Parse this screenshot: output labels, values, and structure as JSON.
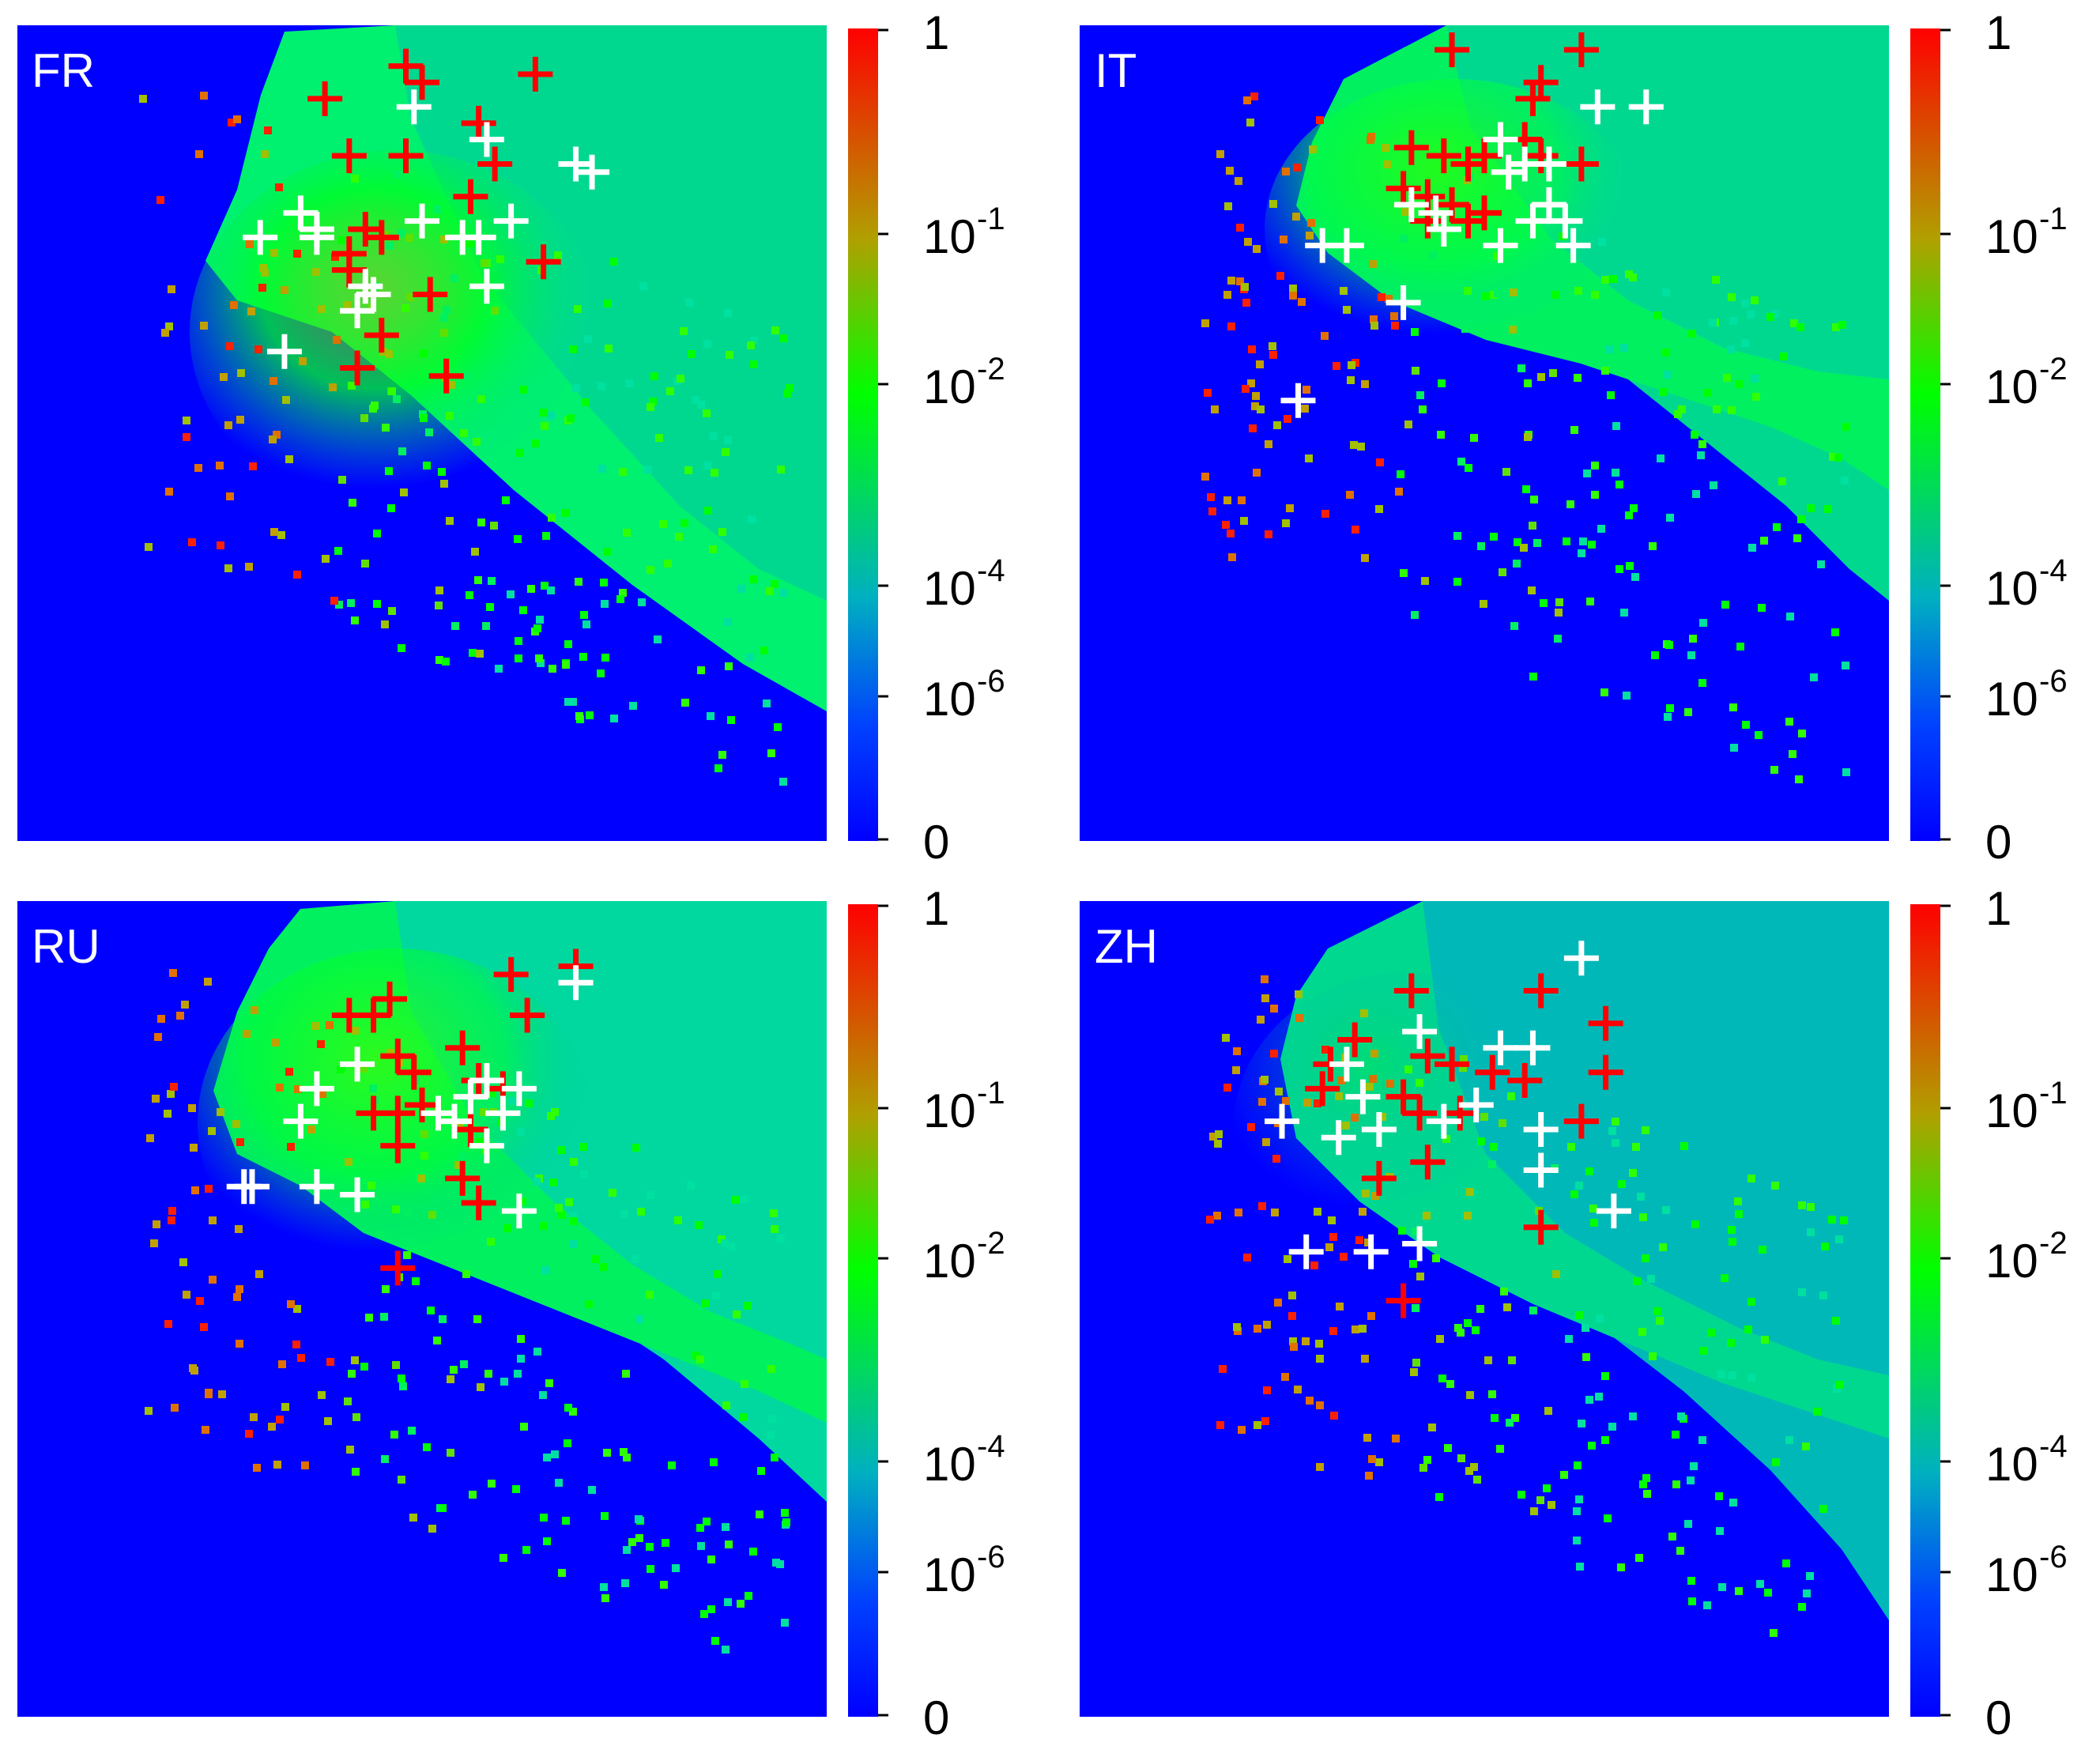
{
  "chart_data": [
    {
      "type": "heatmap",
      "label": "FR",
      "colorbar": {
        "scale": "log",
        "tick_labels": [
          {
            "base": "1",
            "exp": ""
          },
          {
            "base": "10",
            "exp": "-1"
          },
          {
            "base": "10",
            "exp": "-2"
          },
          {
            "base": "10",
            "exp": "-4"
          },
          {
            "base": "10",
            "exp": "-6"
          },
          {
            "base": "0",
            "exp": ""
          }
        ]
      },
      "red_markers": [
        [
          0.48,
          0.95
        ],
        [
          0.5,
          0.93
        ],
        [
          0.64,
          0.94
        ],
        [
          0.38,
          0.91
        ],
        [
          0.57,
          0.88
        ],
        [
          0.41,
          0.84
        ],
        [
          0.48,
          0.84
        ],
        [
          0.59,
          0.83
        ],
        [
          0.56,
          0.79
        ],
        [
          0.43,
          0.75
        ],
        [
          0.45,
          0.74
        ],
        [
          0.41,
          0.72
        ],
        [
          0.65,
          0.71
        ],
        [
          0.41,
          0.7
        ],
        [
          0.51,
          0.67
        ],
        [
          0.45,
          0.62
        ],
        [
          0.42,
          0.58
        ],
        [
          0.53,
          0.57
        ]
      ],
      "white_markers": [
        [
          0.49,
          0.9
        ],
        [
          0.58,
          0.86
        ],
        [
          0.69,
          0.83
        ],
        [
          0.71,
          0.82
        ],
        [
          0.35,
          0.77
        ],
        [
          0.37,
          0.75
        ],
        [
          0.3,
          0.74
        ],
        [
          0.37,
          0.74
        ],
        [
          0.5,
          0.76
        ],
        [
          0.55,
          0.74
        ],
        [
          0.57,
          0.74
        ],
        [
          0.61,
          0.76
        ],
        [
          0.43,
          0.68
        ],
        [
          0.44,
          0.67
        ],
        [
          0.42,
          0.65
        ],
        [
          0.58,
          0.68
        ],
        [
          0.33,
          0.6
        ]
      ]
    },
    {
      "type": "heatmap",
      "label": "IT",
      "colorbar": {
        "scale": "log",
        "tick_labels": [
          {
            "base": "1",
            "exp": ""
          },
          {
            "base": "10",
            "exp": "-1"
          },
          {
            "base": "10",
            "exp": "-2"
          },
          {
            "base": "10",
            "exp": "-4"
          },
          {
            "base": "10",
            "exp": "-6"
          },
          {
            "base": "0",
            "exp": ""
          }
        ]
      },
      "red_markers": [
        [
          0.46,
          0.97
        ],
        [
          0.62,
          0.97
        ],
        [
          0.57,
          0.93
        ],
        [
          0.56,
          0.91
        ],
        [
          0.41,
          0.85
        ],
        [
          0.45,
          0.84
        ],
        [
          0.48,
          0.83
        ],
        [
          0.5,
          0.84
        ],
        [
          0.55,
          0.86
        ],
        [
          0.57,
          0.84
        ],
        [
          0.62,
          0.83
        ],
        [
          0.4,
          0.8
        ],
        [
          0.43,
          0.79
        ],
        [
          0.46,
          0.78
        ],
        [
          0.48,
          0.76
        ],
        [
          0.5,
          0.77
        ],
        [
          0.43,
          0.76
        ]
      ],
      "white_markers": [
        [
          0.64,
          0.9
        ],
        [
          0.7,
          0.9
        ],
        [
          0.52,
          0.86
        ],
        [
          0.53,
          0.82
        ],
        [
          0.55,
          0.83
        ],
        [
          0.58,
          0.83
        ],
        [
          0.41,
          0.78
        ],
        [
          0.44,
          0.77
        ],
        [
          0.45,
          0.75
        ],
        [
          0.56,
          0.76
        ],
        [
          0.58,
          0.78
        ],
        [
          0.6,
          0.76
        ],
        [
          0.3,
          0.73
        ],
        [
          0.33,
          0.73
        ],
        [
          0.52,
          0.73
        ],
        [
          0.61,
          0.73
        ],
        [
          0.4,
          0.66
        ],
        [
          0.27,
          0.54
        ]
      ]
    },
    {
      "type": "heatmap",
      "label": "RU",
      "colorbar": {
        "scale": "log",
        "tick_labels": [
          {
            "base": "1",
            "exp": ""
          },
          {
            "base": "10",
            "exp": "-1"
          },
          {
            "base": "10",
            "exp": "-2"
          },
          {
            "base": "10",
            "exp": "-4"
          },
          {
            "base": "10",
            "exp": "-6"
          },
          {
            "base": "0",
            "exp": ""
          }
        ]
      },
      "red_markers": [
        [
          0.69,
          0.92
        ],
        [
          0.61,
          0.91
        ],
        [
          0.63,
          0.86
        ],
        [
          0.46,
          0.88
        ],
        [
          0.41,
          0.86
        ],
        [
          0.44,
          0.86
        ],
        [
          0.55,
          0.82
        ],
        [
          0.57,
          0.78
        ],
        [
          0.47,
          0.81
        ],
        [
          0.49,
          0.79
        ],
        [
          0.6,
          0.77
        ],
        [
          0.44,
          0.74
        ],
        [
          0.47,
          0.74
        ],
        [
          0.5,
          0.75
        ],
        [
          0.56,
          0.72
        ],
        [
          0.47,
          0.7
        ],
        [
          0.55,
          0.66
        ],
        [
          0.57,
          0.63
        ],
        [
          0.47,
          0.55
        ]
      ],
      "white_markers": [
        [
          0.69,
          0.9
        ],
        [
          0.42,
          0.8
        ],
        [
          0.37,
          0.77
        ],
        [
          0.58,
          0.78
        ],
        [
          0.62,
          0.77
        ],
        [
          0.56,
          0.76
        ],
        [
          0.35,
          0.73
        ],
        [
          0.52,
          0.74
        ],
        [
          0.54,
          0.73
        ],
        [
          0.6,
          0.74
        ],
        [
          0.58,
          0.7
        ],
        [
          0.28,
          0.65
        ],
        [
          0.29,
          0.65
        ],
        [
          0.37,
          0.65
        ],
        [
          0.42,
          0.64
        ],
        [
          0.62,
          0.62
        ]
      ]
    },
    {
      "type": "heatmap",
      "label": "ZH",
      "colorbar": {
        "scale": "log",
        "tick_labels": [
          {
            "base": "1",
            "exp": ""
          },
          {
            "base": "10",
            "exp": "-1"
          },
          {
            "base": "10",
            "exp": "-2"
          },
          {
            "base": "10",
            "exp": "-4"
          },
          {
            "base": "10",
            "exp": "-6"
          },
          {
            "base": "0",
            "exp": ""
          }
        ]
      },
      "red_markers": [
        [
          0.41,
          0.89
        ],
        [
          0.57,
          0.89
        ],
        [
          0.65,
          0.85
        ],
        [
          0.34,
          0.83
        ],
        [
          0.31,
          0.8
        ],
        [
          0.43,
          0.81
        ],
        [
          0.46,
          0.8
        ],
        [
          0.51,
          0.79
        ],
        [
          0.55,
          0.78
        ],
        [
          0.3,
          0.77
        ],
        [
          0.4,
          0.76
        ],
        [
          0.42,
          0.74
        ],
        [
          0.47,
          0.74
        ],
        [
          0.62,
          0.73
        ],
        [
          0.65,
          0.79
        ],
        [
          0.37,
          0.66
        ],
        [
          0.43,
          0.68
        ],
        [
          0.57,
          0.6
        ],
        [
          0.4,
          0.51
        ]
      ],
      "white_markers": [
        [
          0.62,
          0.93
        ],
        [
          0.42,
          0.84
        ],
        [
          0.52,
          0.82
        ],
        [
          0.56,
          0.82
        ],
        [
          0.33,
          0.8
        ],
        [
          0.35,
          0.76
        ],
        [
          0.25,
          0.73
        ],
        [
          0.32,
          0.71
        ],
        [
          0.37,
          0.72
        ],
        [
          0.45,
          0.73
        ],
        [
          0.49,
          0.75
        ],
        [
          0.57,
          0.72
        ],
        [
          0.57,
          0.67
        ],
        [
          0.66,
          0.62
        ],
        [
          0.28,
          0.57
        ],
        [
          0.36,
          0.57
        ],
        [
          0.42,
          0.58
        ]
      ]
    }
  ],
  "colors": {
    "low": "#0000ff",
    "mid_low": "#00b0b0",
    "mid": "#00ff00",
    "mid_high": "#c0a000",
    "high": "#ff0000",
    "marker_red": "#ff0000",
    "marker_white": "#ffffff"
  }
}
